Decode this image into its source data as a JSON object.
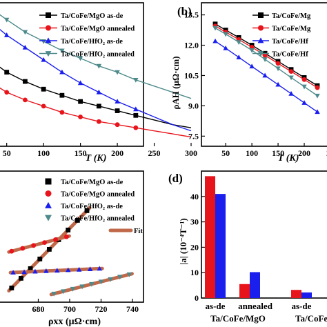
{
  "panels": {
    "a": {
      "label": "",
      "xlabel": "T (K)",
      "xticks": [
        "50",
        "100",
        "150",
        "200",
        "250",
        "300"
      ]
    },
    "b": {
      "label": "(b)",
      "xlabel": "T (K)",
      "ylabel": "ρAH (μΩ·cm)",
      "xticks": [
        "50",
        "100",
        "150",
        "200",
        "25"
      ],
      "yticks": [
        "7.5",
        "9.0",
        "10.5",
        "12.0",
        "13.5"
      ]
    },
    "c": {
      "label": "",
      "xlabel": "ρxx (μΩ·cm)",
      "xticks": [
        "680",
        "700",
        "720",
        "740"
      ]
    },
    "d": {
      "label": "(d)",
      "ylabel": "|a| (10⁻⁴T⁻¹)",
      "yticks": [
        "0",
        "10",
        "20",
        "30",
        "40"
      ],
      "groups": [
        "as-de",
        "annealed",
        "as-de"
      ],
      "group_sub": [
        "Ta/CoFe/MgO",
        "Ta/CoFe"
      ]
    }
  },
  "legend": {
    "items": [
      "Ta/CoFe/MgO as-de",
      "Ta/CoFe/MgO annealed",
      "Ta/CoFe/HfO₂ as-de",
      "Ta/CoFe/HfO₂ annealed"
    ],
    "items_b": [
      "Ta/CoFe/Mg",
      "Ta/CoFe/Mg",
      "Ta/CoFe/Hf",
      "Ta/CoFe/Hf"
    ],
    "fit": "Fit"
  },
  "colors": {
    "black": "#000000",
    "red": "#e8141b",
    "blue": "#1a1fee",
    "teal": "#4e8a8b",
    "fit": "#c0694a"
  },
  "chart_data": [
    {
      "panel": "a",
      "type": "line",
      "xlabel": "T (K)",
      "xlim": [
        20,
        310
      ],
      "x": [
        30,
        50,
        75,
        100,
        125,
        150,
        175,
        200,
        225,
        250,
        275,
        300
      ],
      "series": [
        {
          "name": "Ta/CoFe/MgO as-de",
          "marker": "square",
          "color": "#000000",
          "values": [
            0.7,
            0.63,
            0.57,
            0.52,
            0.48,
            0.44,
            0.41,
            0.38,
            0.35,
            0.32,
            0.29,
            0.27
          ]
        },
        {
          "name": "Ta/CoFe/MgO annealed",
          "marker": "circle",
          "color": "#e8141b",
          "values": [
            0.56,
            0.5,
            0.45,
            0.41,
            0.37,
            0.34,
            0.31,
            0.29,
            0.27,
            0.25,
            0.23,
            0.21
          ]
        },
        {
          "name": "Ta/CoFe/HfO₂ as-de",
          "marker": "triangle-up",
          "color": "#1a1fee",
          "values": [
            0.95,
            0.87,
            0.79,
            0.71,
            0.63,
            0.56,
            0.5,
            0.44,
            0.39,
            0.34,
            0.29,
            0.25
          ]
        },
        {
          "name": "Ta/CoFe/HfO₂ annealed",
          "marker": "triangle-down",
          "color": "#4e8a8b",
          "values": [
            1.04,
            0.97,
            0.89,
            0.83,
            0.77,
            0.72,
            0.67,
            0.63,
            0.58,
            0.54,
            0.5,
            0.46
          ]
        }
      ]
    },
    {
      "panel": "b",
      "type": "line",
      "xlabel": "T (K)",
      "ylabel": "ρAH (μΩ·cm)",
      "xlim": [
        0,
        260
      ],
      "ylim": [
        7.0,
        14.1
      ],
      "x": [
        30,
        50,
        75,
        100,
        125,
        150,
        175,
        200,
        225,
        250
      ],
      "series": [
        {
          "name": "Ta/CoFe/MgO as-de",
          "marker": "square",
          "color": "#000000",
          "values": [
            13.05,
            12.75,
            12.38,
            12.0,
            11.6,
            11.2,
            10.8,
            10.4,
            10.0,
            9.6
          ]
        },
        {
          "name": "Ta/CoFe/MgO annealed",
          "marker": "circle",
          "color": "#e8141b",
          "values": [
            12.95,
            12.65,
            12.28,
            11.9,
            11.5,
            11.1,
            10.7,
            10.3,
            9.9,
            9.5
          ]
        },
        {
          "name": "Ta/CoFe/HfO₂ as-de",
          "marker": "triangle-up",
          "color": "#1a1fee",
          "values": [
            12.2,
            11.85,
            11.4,
            10.95,
            10.5,
            10.05,
            9.6,
            9.15,
            8.7,
            8.3
          ]
        },
        {
          "name": "Ta/CoFe/HfO₂ annealed",
          "marker": "triangle-down",
          "color": "#4e8a8b",
          "values": [
            12.85,
            12.55,
            12.15,
            11.75,
            11.3,
            10.85,
            10.4,
            9.95,
            9.5,
            9.0
          ]
        }
      ]
    },
    {
      "panel": "c",
      "type": "scatter",
      "xlabel": "ρxx (μΩ·cm)",
      "xlim": [
        662,
        746
      ],
      "series": [
        {
          "name": "Ta/CoFe/MgO as-de",
          "marker": "square",
          "color": "#000000",
          "x": [
            663,
            669,
            675,
            681,
            687,
            693,
            699,
            705,
            711
          ],
          "y": [
            0.09,
            0.19,
            0.29,
            0.39,
            0.49,
            0.59,
            0.69,
            0.79,
            0.89
          ]
        },
        {
          "name": "Ta/CoFe/MgO annealed",
          "marker": "circle",
          "color": "#e8141b",
          "x": [
            663,
            670,
            677,
            684,
            691,
            698
          ],
          "y": [
            0.47,
            0.5,
            0.53,
            0.56,
            0.59,
            0.62
          ]
        },
        {
          "name": "Ta/CoFe/HfO₂ as-de",
          "marker": "triangle-up",
          "color": "#1a1fee",
          "x": [
            664,
            671,
            678,
            685,
            692,
            699,
            706,
            713,
            719
          ],
          "y": [
            0.25,
            0.255,
            0.26,
            0.265,
            0.27,
            0.275,
            0.28,
            0.285,
            0.29
          ]
        },
        {
          "name": "Ta/CoFe/HfO₂ annealed",
          "marker": "triangle-down",
          "color": "#4e8a8b",
          "x": [
            690,
            696,
            702,
            708,
            714,
            720,
            726,
            732,
            738
          ],
          "y": [
            0.03,
            0.055,
            0.08,
            0.105,
            0.13,
            0.155,
            0.18,
            0.205,
            0.23
          ]
        },
        {
          "name": "Fit",
          "style": "line",
          "color": "#c0694a"
        }
      ]
    },
    {
      "panel": "d",
      "type": "bar",
      "ylabel": "|a| (10⁻⁴T⁻¹)",
      "ylim": [
        0,
        50
      ],
      "categories": [
        "Ta/CoFe/MgO as-de",
        "Ta/CoFe/MgO annealed",
        "Ta/CoFe/HfO₂ as-de"
      ],
      "series": [
        {
          "color": "#e8141b",
          "values": [
            48,
            5.5,
            3.2
          ]
        },
        {
          "color": "#1a1fee",
          "values": [
            41,
            10.2,
            2.2
          ]
        }
      ]
    }
  ]
}
